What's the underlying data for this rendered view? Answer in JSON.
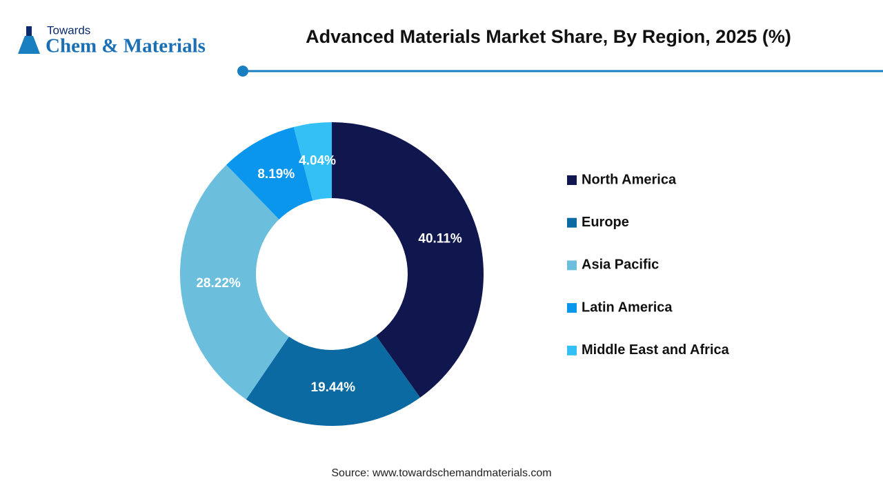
{
  "logo": {
    "top": "Towards",
    "main": "Chem & Materials"
  },
  "chart_data": {
    "type": "donut",
    "title": "Advanced Materials Market Share, By Region, 2025 (%)",
    "categories": [
      "North America",
      "Europe",
      "Asia Pacific",
      "Latin America",
      "Middle East and Africa"
    ],
    "values": [
      40.11,
      19.44,
      28.22,
      8.19,
      4.04
    ],
    "value_labels": [
      "40.11%",
      "19.44%",
      "28.22%",
      "8.19%",
      "4.04%"
    ],
    "colors": [
      "#10174f",
      "#0a6aa1",
      "#6bbfdc",
      "#0b96ee",
      "#35c0f5"
    ],
    "legend": "right",
    "source": "Source: www.towardschemandmaterials.com"
  }
}
